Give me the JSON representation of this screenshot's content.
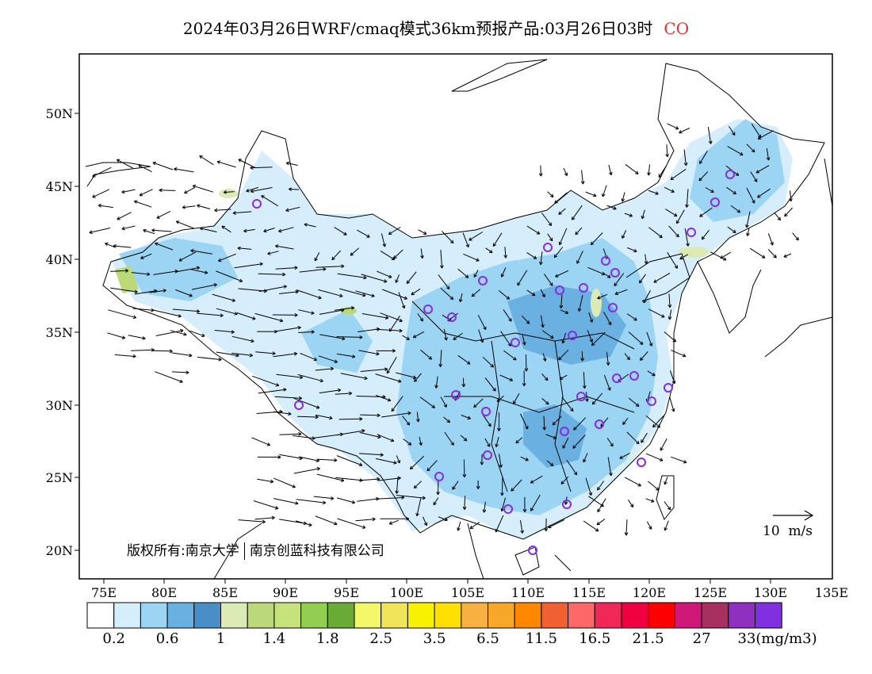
{
  "title": {
    "main": "2024年03月26日WRF/cmaq模式36km预报产品:03月26日03时",
    "species": "CO"
  },
  "map": {
    "lon_ticks": [
      "75E",
      "80E",
      "85E",
      "90E",
      "95E",
      "100E",
      "105E",
      "110E",
      "115E",
      "120E",
      "125E",
      "130E",
      "135E"
    ],
    "lat_ticks": [
      "50N",
      "45N",
      "40N",
      "35N",
      "30N",
      "25N",
      "20N"
    ],
    "extent": {
      "lon": [
        72,
        135
      ],
      "lat": [
        18,
        54
      ]
    },
    "wind_scale_label": "10  m/s",
    "copyright_left": "版权所有:南京大学",
    "copyright_right": "南京创蓝科技有限公司"
  },
  "colorbar": {
    "colors": [
      "#ffffff",
      "#d6eefb",
      "#9cd4f3",
      "#6ab0e0",
      "#4a8ec8",
      "#dcebb6",
      "#bcd97a",
      "#c6e27a",
      "#92cf50",
      "#6aaa36",
      "#f3f86a",
      "#f0e45a",
      "#f8f200",
      "#ffe000",
      "#f8b040",
      "#f8a828",
      "#ff8800",
      "#f06030",
      "#ff6868",
      "#f02858",
      "#f00040",
      "#ff0000",
      "#d01878",
      "#a83060",
      "#9030c0",
      "#8030e0"
    ],
    "labels": [
      "0.2",
      "0.6",
      "1",
      "1.4",
      "1.8",
      "2.5",
      "3.5",
      "6.5",
      "11.5",
      "16.5",
      "21.5",
      "27",
      "33(mg/m3)"
    ]
  }
}
